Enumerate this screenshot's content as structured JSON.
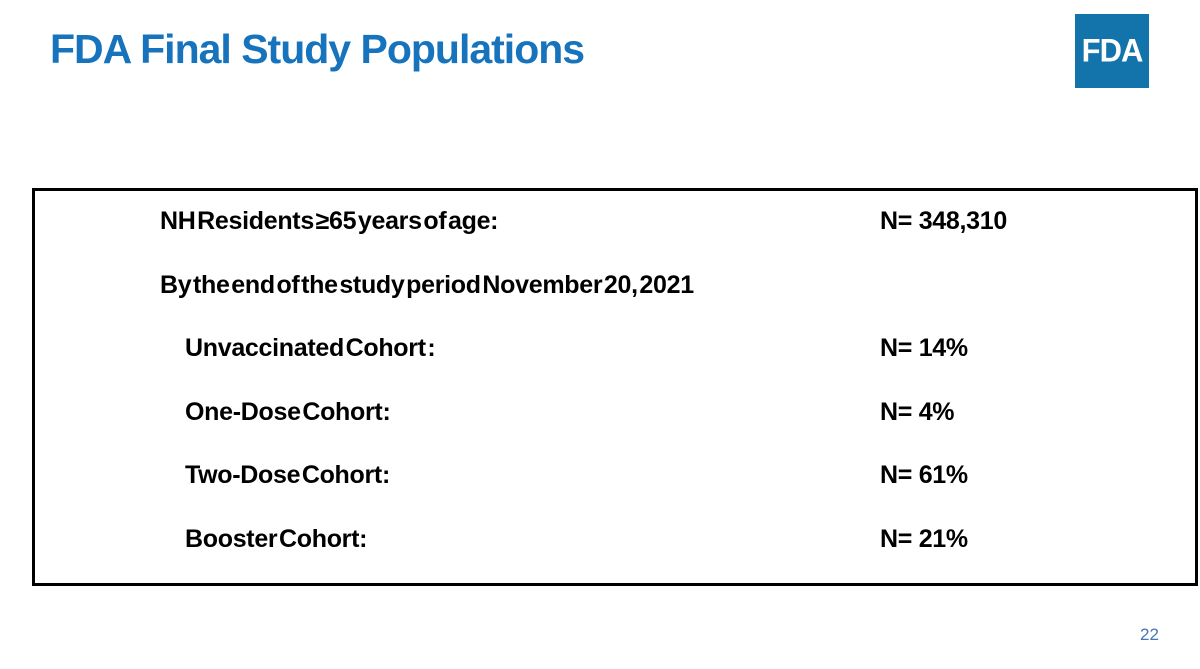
{
  "slide": {
    "title": "FDA Final Study Populations",
    "page_number": "22"
  },
  "logo": {
    "text": "FDA"
  },
  "colors": {
    "title_blue": "#1673bc",
    "logo_blue": "#1274ab",
    "page_number_blue": "#4576b8",
    "body_text": "#000000",
    "box_border": "#000000"
  },
  "study_box": {
    "header": {
      "label": "NH Residents ≥65 years of age:",
      "value": "N= 348,310"
    },
    "subheader": "By the end of the study period November 20, 2021",
    "cohorts": [
      {
        "label": "Unvaccinated Cohort :",
        "value": "N= 14%"
      },
      {
        "label": "One-Dose Cohort:",
        "value": "N= 4%"
      },
      {
        "label": "Two-Dose Cohort:",
        "value": "N= 61%"
      },
      {
        "label": "Booster Cohort:",
        "value": "N= 21%"
      }
    ]
  }
}
